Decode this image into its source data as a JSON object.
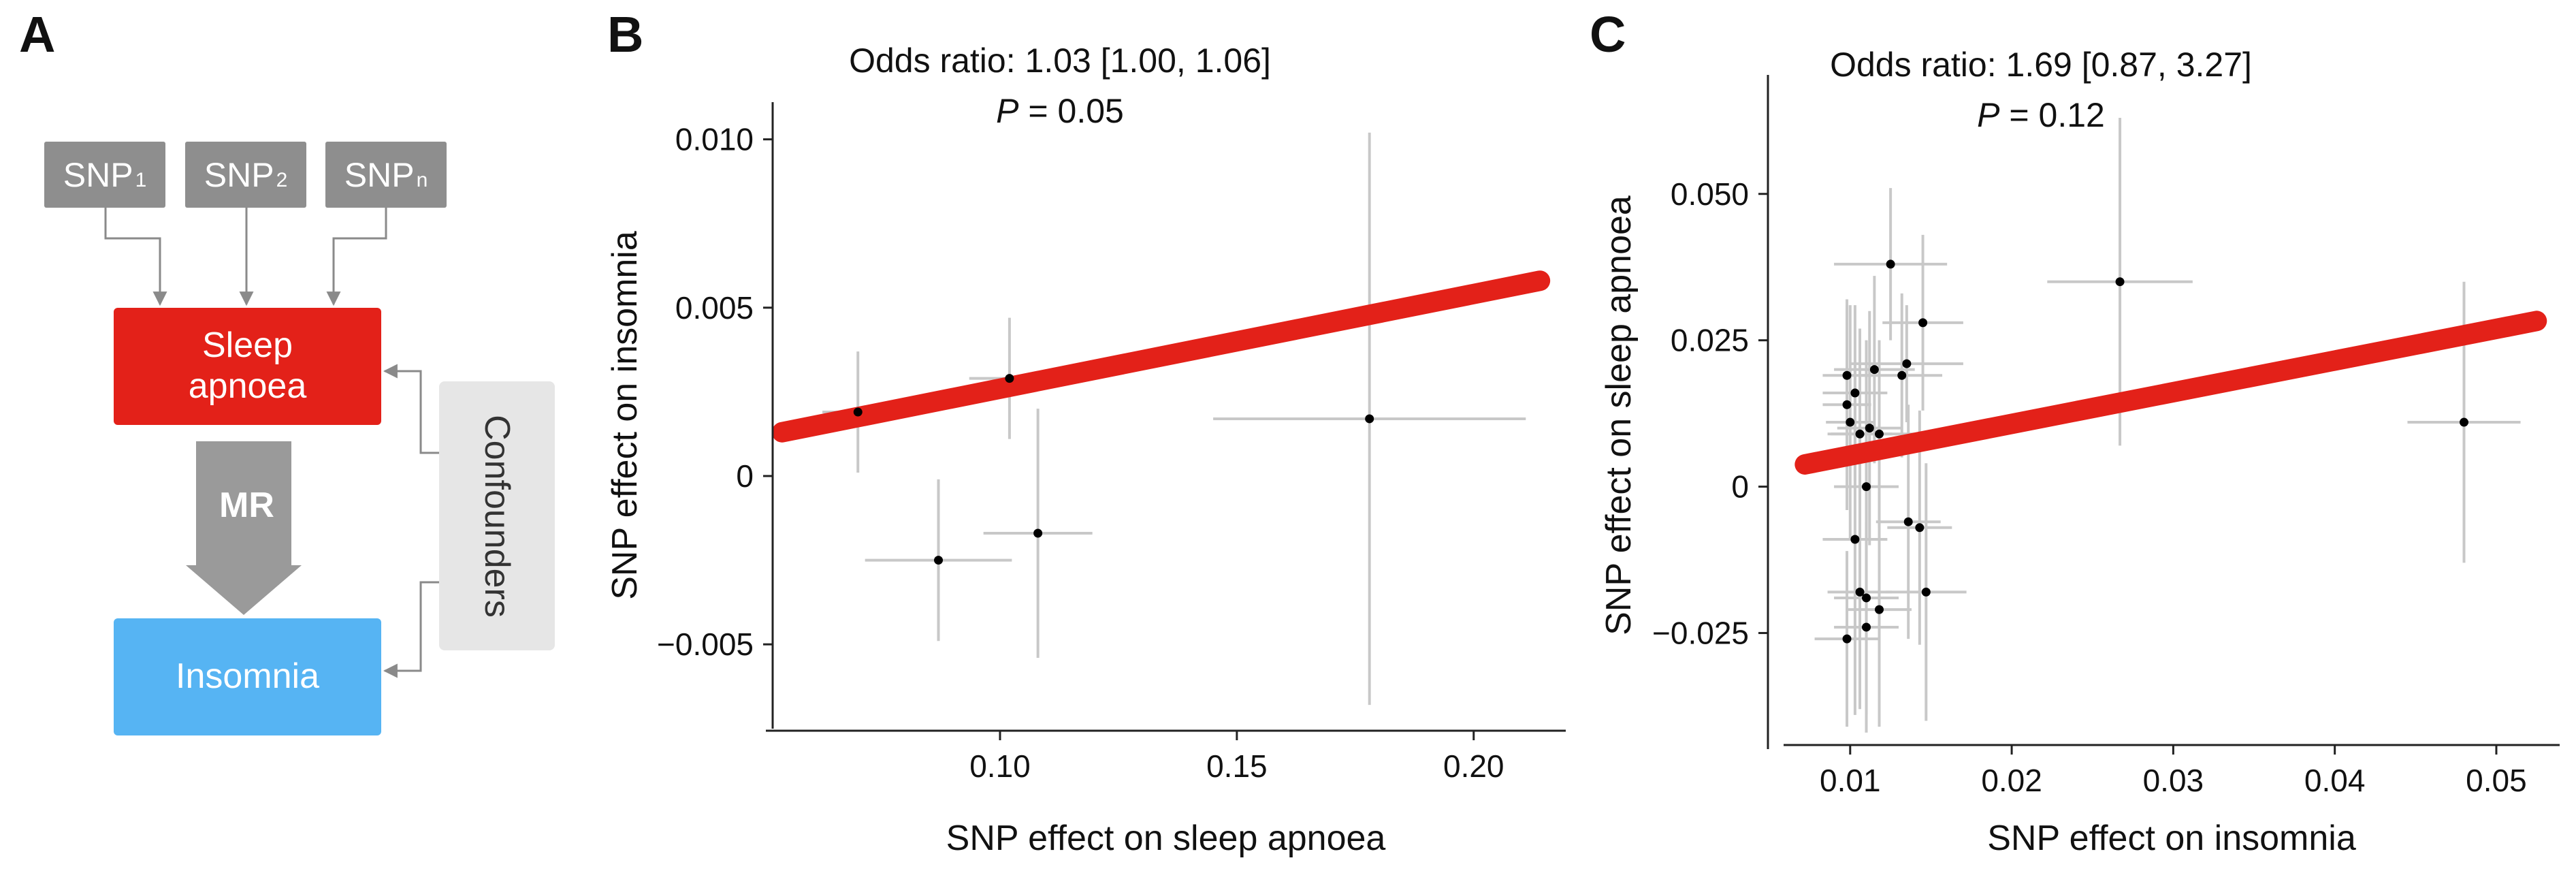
{
  "panels": {
    "a": "A",
    "b": "B",
    "c": "C"
  },
  "diagram": {
    "snps": [
      {
        "base": "SNP",
        "sub": "1"
      },
      {
        "base": "SNP",
        "sub": "2"
      },
      {
        "base": "SNP",
        "sub": "n"
      }
    ],
    "exposure_line1": "Sleep",
    "exposure_line2": "apnoea",
    "outcome": "Insomnia",
    "confounders": "Confounders",
    "method": "MR",
    "colors": {
      "exposure": "#e32119",
      "outcome": "#56b4f3",
      "snp": "#8e8e8e",
      "confounders": "#e6e6e6",
      "arrow": "#9a9a9a"
    }
  },
  "chart_data": [
    {
      "panel": "B",
      "type": "scatter",
      "annotation": "Odds ratio: 1.03 [1.00, 1.06]",
      "p_label": "P",
      "p_value": "= 0.05",
      "xlabel": "SNP effect on sleep apnoea",
      "ylabel": "SNP effect on insomnia",
      "xlim": [
        0.052,
        0.218
      ],
      "ylim": [
        -0.0071,
        0.0107
      ],
      "xticks": [
        0.1,
        0.15,
        0.2
      ],
      "xtick_labels": [
        "0.10",
        "0.15",
        "0.20"
      ],
      "yticks": [
        -0.005,
        0,
        0.005,
        0.01
      ],
      "ytick_labels": [
        "−0.005",
        "0",
        "0.005",
        "0.010"
      ],
      "points": [
        {
          "x": 0.07,
          "y": 0.0019,
          "xerr": 0.0075,
          "yerr": 0.0018
        },
        {
          "x": 0.102,
          "y": 0.0029,
          "xerr": 0.0085,
          "yerr": 0.0018
        },
        {
          "x": 0.087,
          "y": -0.0025,
          "xerr": 0.0155,
          "yerr": 0.0024
        },
        {
          "x": 0.108,
          "y": -0.0017,
          "xerr": 0.0115,
          "yerr": 0.0037
        },
        {
          "x": 0.178,
          "y": 0.0017,
          "xerr": 0.033,
          "yerr": 0.0085
        }
      ],
      "fit_line": {
        "x": [
          0.054,
          0.214
        ],
        "y": [
          0.0013,
          0.0058
        ]
      },
      "line_color": "#e32119"
    },
    {
      "panel": "C",
      "type": "scatter",
      "annotation": "Odds ratio: 1.69 [0.87, 3.27]",
      "p_label": "P",
      "p_value": "= 0.12",
      "xlabel": "SNP effect on insomnia",
      "ylabel": "SNP effect on sleep apnoea",
      "xlim": [
        0.0063,
        0.0535
      ],
      "ylim": [
        -0.0425,
        0.068
      ],
      "xticks": [
        0.01,
        0.02,
        0.03,
        0.04,
        0.05
      ],
      "xtick_labels": [
        "0.01",
        "0.02",
        "0.03",
        "0.04",
        "0.05"
      ],
      "yticks": [
        -0.025,
        0,
        0.025,
        0.05
      ],
      "ytick_labels": [
        "−0.025",
        "0",
        "0.025",
        "0.050"
      ],
      "points": [
        {
          "x": 0.0125,
          "y": 0.038,
          "xerr": 0.0035,
          "yerr": 0.013
        },
        {
          "x": 0.0145,
          "y": 0.028,
          "xerr": 0.0025,
          "yerr": 0.015
        },
        {
          "x": 0.0098,
          "y": 0.019,
          "xerr": 0.0015,
          "yerr": 0.012
        },
        {
          "x": 0.0115,
          "y": 0.02,
          "xerr": 0.0025,
          "yerr": 0.016
        },
        {
          "x": 0.0135,
          "y": 0.021,
          "xerr": 0.0035,
          "yerr": 0.01
        },
        {
          "x": 0.0132,
          "y": 0.019,
          "xerr": 0.0025,
          "yerr": 0.014
        },
        {
          "x": 0.0103,
          "y": 0.016,
          "xerr": 0.002,
          "yerr": 0.015
        },
        {
          "x": 0.0098,
          "y": 0.014,
          "xerr": 0.0015,
          "yerr": 0.018
        },
        {
          "x": 0.01,
          "y": 0.011,
          "xerr": 0.0015,
          "yerr": 0.02
        },
        {
          "x": 0.0112,
          "y": 0.01,
          "xerr": 0.002,
          "yerr": 0.02
        },
        {
          "x": 0.0106,
          "y": 0.009,
          "xerr": 0.002,
          "yerr": 0.018
        },
        {
          "x": 0.0118,
          "y": 0.009,
          "xerr": 0.003,
          "yerr": 0.016
        },
        {
          "x": 0.011,
          "y": 0.0,
          "xerr": 0.002,
          "yerr": 0.025
        },
        {
          "x": 0.0103,
          "y": -0.009,
          "xerr": 0.002,
          "yerr": 0.03
        },
        {
          "x": 0.0136,
          "y": -0.006,
          "xerr": 0.002,
          "yerr": 0.02
        },
        {
          "x": 0.0143,
          "y": -0.007,
          "xerr": 0.002,
          "yerr": 0.02
        },
        {
          "x": 0.0106,
          "y": -0.018,
          "xerr": 0.002,
          "yerr": 0.02
        },
        {
          "x": 0.011,
          "y": -0.019,
          "xerr": 0.002,
          "yerr": 0.02
        },
        {
          "x": 0.0118,
          "y": -0.021,
          "xerr": 0.002,
          "yerr": 0.02
        },
        {
          "x": 0.0147,
          "y": -0.018,
          "xerr": 0.0025,
          "yerr": 0.022
        },
        {
          "x": 0.011,
          "y": -0.024,
          "xerr": 0.002,
          "yerr": 0.018
        },
        {
          "x": 0.0098,
          "y": -0.026,
          "xerr": 0.002,
          "yerr": 0.015
        },
        {
          "x": 0.0267,
          "y": 0.035,
          "xerr": 0.0045,
          "yerr": 0.028
        },
        {
          "x": 0.048,
          "y": 0.011,
          "xerr": 0.0035,
          "yerr": 0.024
        }
      ],
      "fit_line": {
        "x": [
          0.0072,
          0.0525
        ],
        "y": [
          0.0038,
          0.0283
        ]
      },
      "line_color": "#e32119"
    }
  ]
}
